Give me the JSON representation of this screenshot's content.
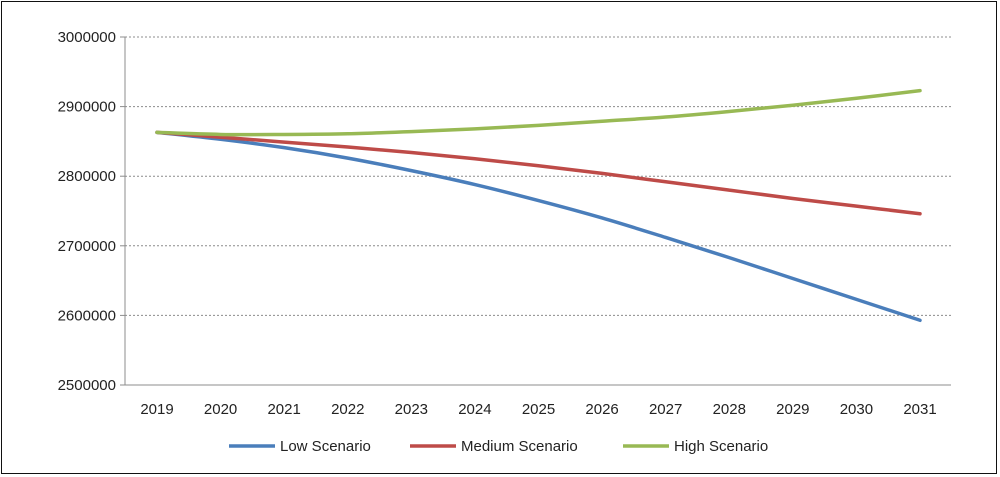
{
  "chart_data": {
    "type": "line",
    "title": "",
    "xlabel": "",
    "ylabel": "",
    "x": [
      "2019",
      "2020",
      "2021",
      "2022",
      "2023",
      "2024",
      "2025",
      "2026",
      "2027",
      "2028",
      "2029",
      "2030",
      "2031"
    ],
    "ylim": [
      2500000,
      3000000
    ],
    "yticks": [
      "2500000",
      "2600000",
      "2700000",
      "2800000",
      "2900000",
      "3000000"
    ],
    "grid": true,
    "legend_position": "bottom",
    "series": [
      {
        "name": "Low Scenario",
        "color": "#4a7ebb",
        "values": [
          2863000,
          2853000,
          2841000,
          2826000,
          2808000,
          2788000,
          2765000,
          2740000,
          2712000,
          2683000,
          2653000,
          2623000,
          2593000
        ]
      },
      {
        "name": "Medium Scenario",
        "color": "#be4b48",
        "values": [
          2863000,
          2856000,
          2849000,
          2842000,
          2834000,
          2825000,
          2815000,
          2804000,
          2792000,
          2780000,
          2768000,
          2757000,
          2746000
        ]
      },
      {
        "name": "High Scenario",
        "color": "#98b954",
        "values": [
          2863000,
          2860000,
          2860000,
          2861000,
          2864000,
          2868000,
          2873000,
          2879000,
          2885000,
          2893000,
          2902000,
          2912000,
          2923000
        ]
      }
    ]
  }
}
